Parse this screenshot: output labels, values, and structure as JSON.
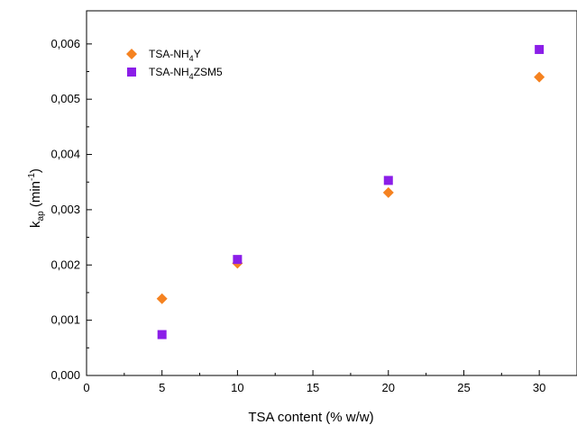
{
  "chart_data": {
    "type": "scatter",
    "xlabel": "TSA content (% w/w)",
    "ylabel": {
      "base": "k",
      "subscript": "ap",
      "unit_prefix": " (min",
      "unit_superscript": "-1",
      "unit_suffix": ")"
    },
    "xlim": [
      0,
      32.5
    ],
    "ylim": [
      0,
      0.0066
    ],
    "xticks": [
      "0",
      "5",
      "10",
      "15",
      "20",
      "25",
      "30"
    ],
    "yticks": [
      "0,000",
      "0,001",
      "0,002",
      "0,003",
      "0,004",
      "0,005",
      "0,006"
    ],
    "grid": false,
    "legend_placement": "top-left",
    "series": [
      {
        "name": {
          "prefix": "TSA-NH",
          "subscript": "4",
          "suffix": "Y"
        },
        "marker": "diamond",
        "color": "#f58220",
        "x": [
          5,
          10,
          20,
          30
        ],
        "y": [
          0.00139,
          0.00203,
          0.00331,
          0.0054
        ]
      },
      {
        "name": {
          "prefix": "TSA-NH",
          "subscript": "4",
          "suffix": "ZSM5"
        },
        "marker": "square",
        "color": "#8b1ee8",
        "x": [
          5,
          10,
          20,
          30
        ],
        "y": [
          0.00074,
          0.0021,
          0.00353,
          0.0059
        ]
      }
    ]
  }
}
